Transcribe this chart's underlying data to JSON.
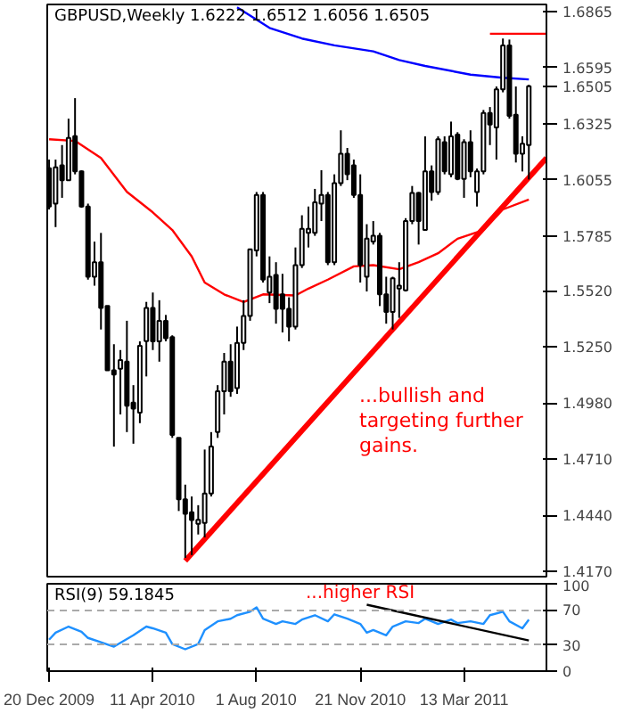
{
  "chart_data": [
    {
      "type": "candlestick",
      "title": "GBPUSD,Weekly  1.6222 1.6512 1.6056 1.6505",
      "x": [
        "2009-12-20",
        "2009-12-27",
        "2010-01-03",
        "2010-01-10",
        "2010-01-17",
        "2010-01-24",
        "2010-01-31",
        "2010-02-07",
        "2010-02-14",
        "2010-02-21",
        "2010-02-28",
        "2010-03-07",
        "2010-03-14",
        "2010-03-21",
        "2010-03-28",
        "2010-04-04",
        "2010-04-11",
        "2010-04-18",
        "2010-04-25",
        "2010-05-02",
        "2010-05-09",
        "2010-05-16",
        "2010-05-23",
        "2010-05-30",
        "2010-06-06",
        "2010-06-13",
        "2010-06-20",
        "2010-06-27",
        "2010-07-04",
        "2010-07-11",
        "2010-07-18",
        "2010-07-25",
        "2010-08-01",
        "2010-08-08",
        "2010-08-15",
        "2010-08-22",
        "2010-08-29",
        "2010-09-05",
        "2010-09-12",
        "2010-09-19",
        "2010-09-26",
        "2010-10-03",
        "2010-10-10",
        "2010-10-17",
        "2010-10-24",
        "2010-10-31",
        "2010-11-07",
        "2010-11-14",
        "2010-11-21",
        "2010-11-28",
        "2010-12-05",
        "2010-12-12",
        "2010-12-19",
        "2010-12-26",
        "2011-01-02",
        "2011-01-09",
        "2011-01-16",
        "2011-01-23",
        "2011-01-30",
        "2011-02-06",
        "2011-02-13",
        "2011-02-20",
        "2011-02-27",
        "2011-03-06",
        "2011-03-13",
        "2011-03-20",
        "2011-03-27",
        "2011-04-03",
        "2011-04-10",
        "2011-04-17",
        "2011-04-24",
        "2011-05-01",
        "2011-05-08",
        "2011-05-15",
        "2011-05-22"
      ],
      "ohlc": [
        [
          1.611,
          1.6152,
          1.5912,
          1.5926
        ],
        [
          1.594,
          1.6152,
          1.5827,
          1.6115
        ],
        [
          1.6124,
          1.6222,
          1.5968,
          1.6053
        ],
        [
          1.6053,
          1.6349,
          1.6053,
          1.6256
        ],
        [
          1.6265,
          1.6448,
          1.6081,
          1.6095
        ],
        [
          1.6095,
          1.61,
          1.592,
          1.5926
        ],
        [
          1.5926,
          1.594,
          1.5574,
          1.5588
        ],
        [
          1.5588,
          1.5757,
          1.5545,
          1.5658
        ],
        [
          1.5658,
          1.5799,
          1.5334,
          1.5438
        ],
        [
          1.5447,
          1.5447,
          1.5137,
          1.5137
        ],
        [
          1.5137,
          1.5263,
          1.477,
          1.5117
        ],
        [
          1.5145,
          1.5235,
          1.4925,
          1.5187
        ],
        [
          1.5179,
          1.5376,
          1.484,
          1.4967
        ],
        [
          1.4982,
          1.5066,
          1.4784,
          1.4953
        ],
        [
          1.4934,
          1.5277,
          1.4883,
          1.5255
        ],
        [
          1.5278,
          1.5467,
          1.5108,
          1.5438
        ],
        [
          1.5438,
          1.5512,
          1.5235,
          1.5277
        ],
        [
          1.5277,
          1.5475,
          1.5179,
          1.5376
        ],
        [
          1.5376,
          1.5404,
          1.5277,
          1.5292
        ],
        [
          1.5297,
          1.5306,
          1.4812,
          1.4826
        ],
        [
          1.4812,
          1.4812,
          1.446,
          1.4516
        ],
        [
          1.4516,
          1.4587,
          1.4234,
          1.4446
        ],
        [
          1.4454,
          1.453,
          1.4248,
          1.4417
        ],
        [
          1.4398,
          1.4488,
          1.4347,
          1.4418
        ],
        [
          1.4403,
          1.4756,
          1.4333,
          1.4544
        ],
        [
          1.4544,
          1.484,
          1.453,
          1.477
        ],
        [
          1.484,
          1.5066,
          1.4812,
          1.5037
        ],
        [
          1.5037,
          1.5221,
          1.4925,
          1.5179
        ],
        [
          1.5179,
          1.5263,
          1.501,
          1.5037
        ],
        [
          1.5052,
          1.5348,
          1.5024,
          1.5269
        ],
        [
          1.5269,
          1.5475,
          1.5235,
          1.5399
        ],
        [
          1.5399,
          1.572,
          1.5376,
          1.572
        ],
        [
          1.5715,
          1.5996,
          1.5686,
          1.5982
        ],
        [
          1.5982,
          1.5996,
          1.556,
          1.5574
        ],
        [
          1.5512,
          1.5686,
          1.5461,
          1.5588
        ],
        [
          1.5597,
          1.5658,
          1.5362,
          1.5433
        ],
        [
          1.5503,
          1.5602,
          1.532,
          1.5433
        ],
        [
          1.5433,
          1.5489,
          1.5277,
          1.5348
        ],
        [
          1.5348,
          1.5729,
          1.5334,
          1.5644
        ],
        [
          1.5644,
          1.5884,
          1.563,
          1.5819
        ],
        [
          1.5799,
          1.5926,
          1.5729,
          1.5819
        ],
        [
          1.5799,
          1.6011,
          1.5785,
          1.5946
        ],
        [
          1.594,
          1.6101,
          1.5856,
          1.5982
        ],
        [
          1.5982,
          1.5996,
          1.5644,
          1.5658
        ],
        [
          1.5658,
          1.6081,
          1.5644,
          1.6039
        ],
        [
          1.6039,
          1.6293,
          1.6025,
          1.618
        ],
        [
          1.618,
          1.6208,
          1.6053,
          1.6081
        ],
        [
          1.6124,
          1.6152,
          1.5968,
          1.5982
        ],
        [
          1.5982,
          1.6081,
          1.556,
          1.5644
        ],
        [
          1.5588,
          1.5841,
          1.5517,
          1.5771
        ],
        [
          1.5757,
          1.5856,
          1.5743,
          1.5785
        ],
        [
          1.5785,
          1.5799,
          1.5447,
          1.5503
        ],
        [
          1.5503,
          1.5588,
          1.5362,
          1.5418
        ],
        [
          1.5418,
          1.5588,
          1.5334,
          1.558
        ],
        [
          1.5531,
          1.5658,
          1.539,
          1.5545
        ],
        [
          1.5523,
          1.587,
          1.5517,
          1.5856
        ],
        [
          1.5856,
          1.6025,
          1.5841,
          1.5991
        ],
        [
          1.5991,
          1.5996,
          1.5743,
          1.5856
        ],
        [
          1.5813,
          1.6264,
          1.5813,
          1.6095
        ],
        [
          1.6095,
          1.6124,
          1.5954,
          1.5996
        ],
        [
          1.5996,
          1.6264,
          1.5982,
          1.625
        ],
        [
          1.6236,
          1.6264,
          1.6081,
          1.6095
        ],
        [
          1.6081,
          1.6335,
          1.6067,
          1.6264
        ],
        [
          1.6273,
          1.6284,
          1.6053,
          1.6059
        ],
        [
          1.6059,
          1.625,
          1.5968,
          1.6236
        ],
        [
          1.6236,
          1.6293,
          1.6067,
          1.6095
        ],
        [
          1.5996,
          1.6109,
          1.5926,
          1.6095
        ],
        [
          1.6095,
          1.6391,
          1.6081,
          1.6377
        ],
        [
          1.6377,
          1.6405,
          1.6222,
          1.6321
        ],
        [
          1.6307,
          1.6504,
          1.6152,
          1.649
        ],
        [
          1.649,
          1.6735,
          1.6476,
          1.6702
        ],
        [
          1.6702,
          1.673,
          1.6349,
          1.6363
        ],
        [
          1.6368,
          1.6504,
          1.6138,
          1.618
        ],
        [
          1.618,
          1.6264,
          1.6095,
          1.6229
        ],
        [
          1.6222,
          1.6512,
          1.6056,
          1.6505
        ]
      ],
      "series": [
        {
          "type": "line",
          "color": "#ff0000",
          "x": [
            "2009-12-20",
            "2010-01-17",
            "2010-02-14",
            "2010-03-14",
            "2010-04-11",
            "2010-05-02",
            "2010-05-23",
            "2010-06-06",
            "2010-06-27",
            "2010-07-18",
            "2010-08-08",
            "2010-09-12",
            "2010-09-26",
            "2010-10-17",
            "2010-11-14",
            "2010-12-05",
            "2011-01-02",
            "2011-01-23",
            "2011-02-13",
            "2011-03-06",
            "2011-04-03",
            "2011-04-24",
            "2011-05-22"
          ],
          "values": [
            1.625,
            1.6242,
            1.616,
            1.5997,
            1.5898,
            1.5813,
            1.5686,
            1.556,
            1.5503,
            1.5466,
            1.5503,
            1.5498,
            1.5531,
            1.5574,
            1.5638,
            1.5644,
            1.5624,
            1.5658,
            1.5701,
            1.5771,
            1.5813,
            1.5912,
            1.596
          ]
        },
        {
          "type": "line",
          "color": "#0000ff",
          "x": [
            "2010-07-11",
            "2010-08-15",
            "2010-09-19",
            "2010-10-24",
            "2010-12-05",
            "2011-01-02",
            "2011-01-30",
            "2011-03-20",
            "2011-04-24",
            "2011-05-22"
          ],
          "values": [
            1.6885,
            1.6786,
            1.6735,
            1.6702,
            1.6673,
            1.6631,
            1.6603,
            1.6561,
            1.6546,
            1.6538
          ]
        },
        {
          "type": "line",
          "color": "#ff0000",
          "x": [
            "2010-05-16",
            "2011-06-10"
          ],
          "values": [
            1.422,
            1.616
          ]
        },
        {
          "type": "line",
          "color": "#ff0000",
          "x": [
            "2011-04-10",
            "2011-06-10"
          ],
          "values": [
            1.6758,
            1.6758
          ]
        }
      ],
      "annotations": [
        "...bullish and targeting further gains."
      ],
      "xlim": [
        "2009-12-18",
        "2011-06-10"
      ],
      "ylim": [
        1.4144,
        1.6899
      ],
      "yticks": [
        {
          "value": 1.6865,
          "label": "1.6865"
        },
        {
          "value": 1.6595,
          "label": "1.6595"
        },
        {
          "value": 1.6505,
          "label": "1.6505"
        },
        {
          "value": 1.6325,
          "label": "1.6325"
        },
        {
          "value": 1.6055,
          "label": "1.6055"
        },
        {
          "value": 1.5785,
          "label": "1.5785"
        },
        {
          "value": 1.552,
          "label": "1.5520"
        },
        {
          "value": 1.525,
          "label": "1.5250"
        },
        {
          "value": 1.498,
          "label": "1.4980"
        },
        {
          "value": 1.471,
          "label": "1.4710"
        },
        {
          "value": 1.444,
          "label": "1.4440"
        },
        {
          "value": 1.417,
          "label": "1.4170"
        }
      ],
      "tick_labels": "y",
      "grid": false
    },
    {
      "type": "line",
      "title": "RSI(9) 59.1845",
      "series": [
        {
          "color": "#1e90ff",
          "x": [
            "2009-12-20",
            "2009-12-27",
            "2010-01-10",
            "2010-01-24",
            "2010-01-31",
            "2010-02-14",
            "2010-02-28",
            "2010-03-21",
            "2010-04-04",
            "2010-04-11",
            "2010-04-25",
            "2010-05-02",
            "2010-05-16",
            "2010-05-30",
            "2010-06-06",
            "2010-06-20",
            "2010-07-04",
            "2010-07-11",
            "2010-07-25",
            "2010-08-01",
            "2010-08-08",
            "2010-08-22",
            "2010-08-29",
            "2010-09-12",
            "2010-09-19",
            "2010-10-03",
            "2010-10-17",
            "2010-10-24",
            "2010-11-07",
            "2010-11-21",
            "2010-11-28",
            "2010-12-05",
            "2010-12-19",
            "2010-12-26",
            "2011-01-09",
            "2011-01-23",
            "2011-01-30",
            "2011-02-13",
            "2011-02-27",
            "2011-03-06",
            "2011-03-20",
            "2011-04-03",
            "2011-04-10",
            "2011-04-24",
            "2011-05-01",
            "2011-05-15",
            "2011-05-22"
          ],
          "values": [
            36,
            44,
            51,
            45,
            38,
            33,
            28,
            41,
            51,
            49,
            44,
            31,
            25,
            31,
            47,
            57,
            60,
            64,
            68,
            73,
            60,
            54,
            57,
            54,
            59,
            64,
            57,
            65,
            60,
            54,
            44,
            47,
            41,
            51,
            57,
            55,
            60,
            54,
            59,
            55,
            57,
            54,
            64,
            68,
            57,
            49,
            59
          ]
        },
        {
          "color": "#000000",
          "x": [
            "2010-11-28",
            "2011-05-22"
          ],
          "values": [
            76,
            35
          ]
        }
      ],
      "ref_lines": [
        {
          "axis": "y",
          "value": 70,
          "line_style": "dashed",
          "color": "#aaaaaa"
        },
        {
          "axis": "y",
          "value": 30,
          "line_style": "dashed",
          "color": "#aaaaaa"
        }
      ],
      "annotations": [
        "...higher RSI"
      ],
      "xlim": [
        "2009-12-18",
        "2011-06-10"
      ],
      "ylim": [
        0,
        100
      ],
      "yticks": [
        0,
        30,
        70,
        100
      ],
      "xticks": [
        {
          "value": "2009-12-20",
          "label": "20 Dec 2009"
        },
        {
          "value": "2010-04-11",
          "label": "11 Apr 2010"
        },
        {
          "value": "2010-08-01",
          "label": "1 Aug 2010"
        },
        {
          "value": "2010-11-21",
          "label": "21 Nov 2010"
        },
        {
          "value": "2011-03-13",
          "label": "13 Mar 2011"
        }
      ],
      "grid": false
    }
  ]
}
